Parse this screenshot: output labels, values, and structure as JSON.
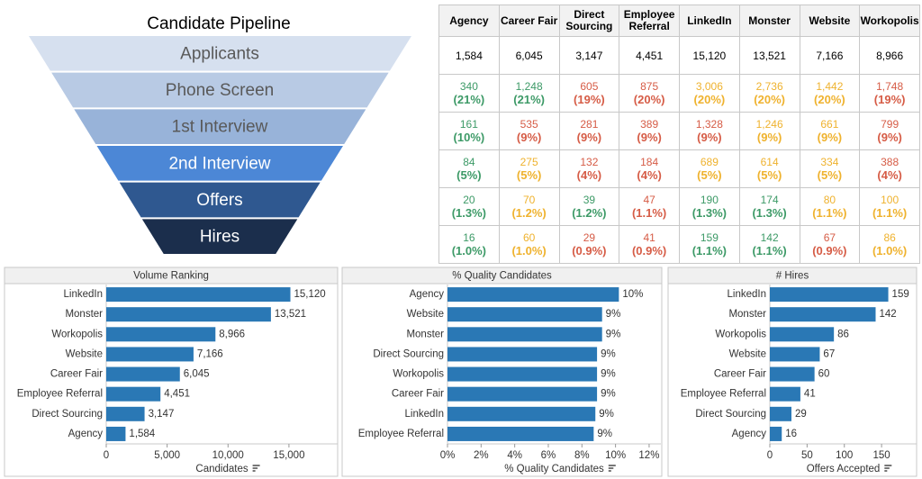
{
  "funnel": {
    "title": "Candidate Pipeline",
    "stages": [
      "Applicants",
      "Phone Screen",
      "1st Interview",
      "2nd Interview",
      "Offers",
      "Hires"
    ],
    "colors": [
      "#d6e0ef",
      "#b8cae4",
      "#98b3d9",
      "#4c87d6",
      "#2f5890",
      "#1b2e4c"
    ]
  },
  "table": {
    "headers": [
      "Agency",
      "Career Fair",
      "Direct Sourcing",
      "Employee Referral",
      "LinkedIn",
      "Monster",
      "Website",
      "Workopolis"
    ],
    "rows": [
      [
        "1,584",
        "6,045",
        "3,147",
        "4,451",
        "15,120",
        "13,521",
        "7,166",
        "8,966"
      ],
      [
        {
          "count": "340",
          "pct": "(21%)",
          "color": "#3d9a67"
        },
        {
          "count": "1,248",
          "pct": "(21%)",
          "color": "#3d9a67"
        },
        {
          "count": "605",
          "pct": "(19%)",
          "color": "#d65c46"
        },
        {
          "count": "875",
          "pct": "(20%)",
          "color": "#d65c46"
        },
        {
          "count": "3,006",
          "pct": "(20%)",
          "color": "#efb22e"
        },
        {
          "count": "2,736",
          "pct": "(20%)",
          "color": "#efb22e"
        },
        {
          "count": "1,442",
          "pct": "(20%)",
          "color": "#efb22e"
        },
        {
          "count": "1,748",
          "pct": "(19%)",
          "color": "#d65c46"
        }
      ],
      [
        {
          "count": "161",
          "pct": "(10%)",
          "color": "#3d9a67"
        },
        {
          "count": "535",
          "pct": "(9%)",
          "color": "#d65c46"
        },
        {
          "count": "281",
          "pct": "(9%)",
          "color": "#d65c46"
        },
        {
          "count": "389",
          "pct": "(9%)",
          "color": "#d65c46"
        },
        {
          "count": "1,328",
          "pct": "(9%)",
          "color": "#d65c46"
        },
        {
          "count": "1,246",
          "pct": "(9%)",
          "color": "#efb22e"
        },
        {
          "count": "661",
          "pct": "(9%)",
          "color": "#efb22e"
        },
        {
          "count": "799",
          "pct": "(9%)",
          "color": "#d65c46"
        }
      ],
      [
        {
          "count": "84",
          "pct": "(5%)",
          "color": "#3d9a67"
        },
        {
          "count": "275",
          "pct": "(5%)",
          "color": "#efb22e"
        },
        {
          "count": "132",
          "pct": "(4%)",
          "color": "#d65c46"
        },
        {
          "count": "184",
          "pct": "(4%)",
          "color": "#d65c46"
        },
        {
          "count": "689",
          "pct": "(5%)",
          "color": "#efb22e"
        },
        {
          "count": "614",
          "pct": "(5%)",
          "color": "#efb22e"
        },
        {
          "count": "334",
          "pct": "(5%)",
          "color": "#efb22e"
        },
        {
          "count": "388",
          "pct": "(4%)",
          "color": "#d65c46"
        }
      ],
      [
        {
          "count": "20",
          "pct": "(1.3%)",
          "color": "#3d9a67"
        },
        {
          "count": "70",
          "pct": "(1.2%)",
          "color": "#efb22e"
        },
        {
          "count": "39",
          "pct": "(1.2%)",
          "color": "#3d9a67"
        },
        {
          "count": "47",
          "pct": "(1.1%)",
          "color": "#d65c46"
        },
        {
          "count": "190",
          "pct": "(1.3%)",
          "color": "#3d9a67"
        },
        {
          "count": "174",
          "pct": "(1.3%)",
          "color": "#3d9a67"
        },
        {
          "count": "80",
          "pct": "(1.1%)",
          "color": "#efb22e"
        },
        {
          "count": "100",
          "pct": "(1.1%)",
          "color": "#efb22e"
        }
      ],
      [
        {
          "count": "16",
          "pct": "(1.0%)",
          "color": "#3d9a67"
        },
        {
          "count": "60",
          "pct": "(1.0%)",
          "color": "#efb22e"
        },
        {
          "count": "29",
          "pct": "(0.9%)",
          "color": "#d65c46"
        },
        {
          "count": "41",
          "pct": "(0.9%)",
          "color": "#d65c46"
        },
        {
          "count": "159",
          "pct": "(1.1%)",
          "color": "#3d9a67"
        },
        {
          "count": "142",
          "pct": "(1.1%)",
          "color": "#3d9a67"
        },
        {
          "count": "67",
          "pct": "(0.9%)",
          "color": "#d65c46"
        },
        {
          "count": "86",
          "pct": "(1.0%)",
          "color": "#efb22e"
        }
      ]
    ]
  },
  "chart_data": [
    {
      "type": "bar",
      "orientation": "horizontal",
      "title": "Volume Ranking",
      "x_label": "Candidates",
      "color": "#2a78b5",
      "categories": [
        "LinkedIn",
        "Monster",
        "Workopolis",
        "Website",
        "Career Fair",
        "Employee Referral",
        "Direct Sourcing",
        "Agency"
      ],
      "values": [
        15120,
        13521,
        8966,
        7166,
        6045,
        4451,
        3147,
        1584
      ],
      "value_labels": [
        "15,120",
        "13,521",
        "8,966",
        "7,166",
        "6,045",
        "4,451",
        "3,147",
        "1,584"
      ],
      "xlim": [
        0,
        19000
      ],
      "xticks": [
        0,
        {
          "value": 5000,
          "label": "5,000"
        },
        {
          "value": 10000,
          "label": "10,000"
        },
        {
          "value": 15000,
          "label": "15,000"
        }
      ]
    },
    {
      "type": "bar",
      "orientation": "horizontal",
      "title": "% Quality Candidates",
      "x_label": "% Quality Candidates",
      "color": "#2a78b5",
      "categories": [
        "Agency",
        "Website",
        "Monster",
        "Direct Sourcing",
        "Workopolis",
        "Career Fair",
        "LinkedIn",
        "Employee Referral"
      ],
      "values": [
        10.2,
        9.2,
        9.2,
        8.9,
        8.9,
        8.9,
        8.8,
        8.7
      ],
      "value_labels": [
        "10%",
        "9%",
        "9%",
        "9%",
        "9%",
        "9%",
        "9%",
        "9%"
      ],
      "xlim": [
        0,
        12.7
      ],
      "xticks": [
        {
          "value": 0,
          "label": "0%"
        },
        {
          "value": 2,
          "label": "2%"
        },
        {
          "value": 4,
          "label": "4%"
        },
        {
          "value": 6,
          "label": "6%"
        },
        {
          "value": 8,
          "label": "8%"
        },
        {
          "value": 10,
          "label": "10%"
        },
        {
          "value": 12,
          "label": "12%"
        }
      ]
    },
    {
      "type": "bar",
      "orientation": "horizontal",
      "title": "# Hires",
      "x_label": "Offers Accepted",
      "color": "#2a78b5",
      "categories": [
        "LinkedIn",
        "Monster",
        "Workopolis",
        "Website",
        "Career Fair",
        "Employee Referral",
        "Direct Sourcing",
        "Agency"
      ],
      "values": [
        159,
        142,
        86,
        67,
        60,
        41,
        29,
        16
      ],
      "xlim": [
        0,
        197
      ],
      "xticks": [
        0,
        50,
        100,
        150
      ]
    }
  ]
}
